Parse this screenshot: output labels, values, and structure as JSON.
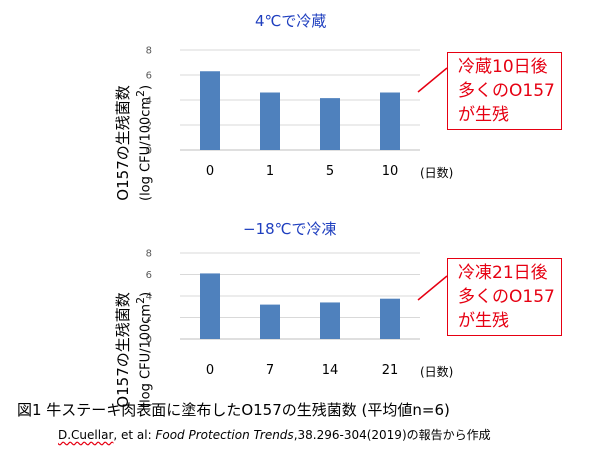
{
  "chart_data": [
    {
      "type": "bar",
      "title": "4℃で冷蔵",
      "ylabel_line1": "O157の生残菌数",
      "ylabel_line2": "(log CFU/100cm",
      "ylabel_sup": "2",
      "ylabel_close": ")",
      "x_unit": "(日数)",
      "categories": [
        "0",
        "1",
        "5",
        "10"
      ],
      "values": [
        6.3,
        4.6,
        4.15,
        4.6
      ],
      "ylim": [
        0,
        8
      ],
      "yticks": [
        "0",
        "2",
        "4",
        "6",
        "8"
      ],
      "grid": true,
      "bar_color": "#4f81bd",
      "callout": [
        "冷蔵10日後",
        "多くのO157",
        "が生残"
      ]
    },
    {
      "type": "bar",
      "title": "−18℃で冷凍",
      "ylabel_line1": "O157の生残菌数",
      "ylabel_line2": "(log CFU/100cm",
      "ylabel_sup": "2",
      "ylabel_close": ")",
      "x_unit": "(日数)",
      "categories": [
        "0",
        "7",
        "14",
        "21"
      ],
      "values": [
        6.1,
        3.2,
        3.4,
        3.75
      ],
      "ylim": [
        0,
        8
      ],
      "yticks": [
        "0",
        "2",
        "4",
        "6",
        "8"
      ],
      "grid": true,
      "bar_color": "#4f81bd",
      "callout": [
        "冷凍21日後",
        "多くのO157",
        "が生残"
      ]
    }
  ],
  "caption": "図1  牛ステーキ肉表面に塗布したO157の生残菌数 (平均値n=6)",
  "source": {
    "author": "D.Cuellar",
    "etal": ", et al: ",
    "journal": "Food Protection Trends",
    "rest": ",38.296-304(2019)の報告から作成"
  },
  "colors": {
    "title": "#1f3fbf",
    "callout": "#e60012",
    "grid": "#d9d9d9"
  }
}
